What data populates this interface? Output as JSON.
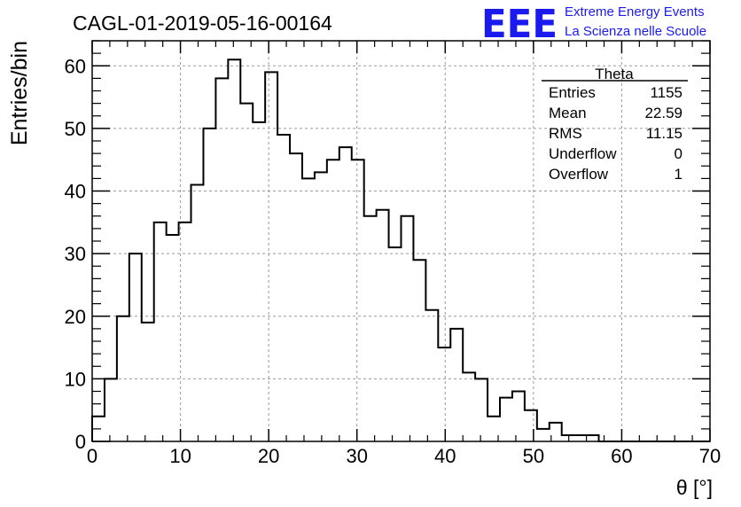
{
  "chart_data": {
    "type": "bar",
    "title": "CAGL-01-2019-05-16-00164",
    "xlabel": "θ [°]",
    "ylabel": "Entries/bin",
    "xlim": [
      0,
      70
    ],
    "ylim": [
      0,
      64
    ],
    "bin_width": 1.4,
    "x_ticks": [
      "0",
      "10",
      "20",
      "30",
      "40",
      "50",
      "60",
      "70"
    ],
    "y_ticks": [
      "0",
      "10",
      "20",
      "30",
      "40",
      "50",
      "60"
    ],
    "grid": true,
    "values": [
      4,
      10,
      20,
      30,
      19,
      35,
      33,
      35,
      41,
      50,
      58,
      61,
      54,
      51,
      59,
      49,
      46,
      42,
      43,
      45,
      47,
      45,
      36,
      37,
      31,
      36,
      29,
      21,
      15,
      18,
      11,
      10,
      4,
      7,
      8,
      5,
      2,
      3,
      1,
      1,
      1,
      0,
      0,
      0,
      0,
      0,
      0,
      0,
      0,
      0
    ],
    "line_color": "#000000"
  },
  "stats_box": {
    "title": "Theta",
    "rows": [
      {
        "label": "Entries",
        "value": "1155"
      },
      {
        "label": "Mean",
        "value": "22.59"
      },
      {
        "label": "RMS",
        "value": "11.15"
      },
      {
        "label": "Underflow",
        "value": "0"
      },
      {
        "label": "Overflow",
        "value": "1"
      }
    ]
  },
  "logo": {
    "mark": "EEE",
    "line1": "Extreme Energy Events",
    "line2": "La Scienza nelle Scuole",
    "color": "#1a1aee"
  }
}
